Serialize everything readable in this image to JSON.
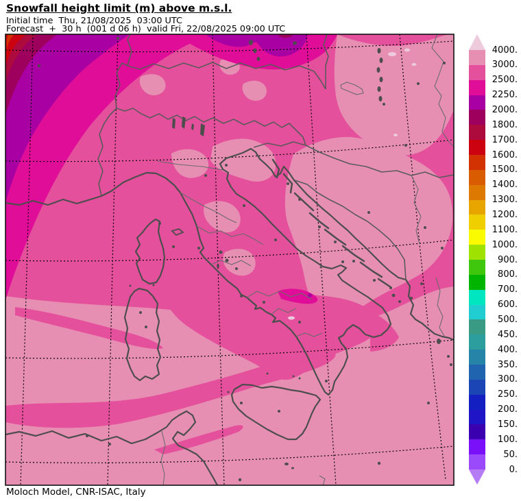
{
  "header": {
    "title": "Snowfall height limit (m) above m.s.l.",
    "initial_time_line": "Initial time  Thu, 21/08/2025  03:00 UTC",
    "forecast_line": "Forecast  +  30 h  (001 d 06 h)  valid Fri, 22/08/2025 09:00 UTC"
  },
  "footer": {
    "credit": "Moloch Model, CNR-ISAC, Italy"
  },
  "colorbar": {
    "labels": [
      "4000.",
      "3000.",
      "2500.",
      "2250.",
      "2000.",
      "1800.",
      "1700.",
      "1600.",
      "1500.",
      "1400.",
      "1300.",
      "1200.",
      "1100.",
      "1000.",
      "900.",
      "800.",
      "700.",
      "600.",
      "500.",
      "450.",
      "400.",
      "350.",
      "300.",
      "250.",
      "200.",
      "150.",
      "100.",
      "50.",
      "0."
    ],
    "segment_colors_top_to_bottom": [
      "#eecadd",
      "#e78fb3",
      "#e4509c",
      "#e00d99",
      "#a800a2",
      "#9d005d",
      "#ad0a3e",
      "#cd0211",
      "#d23102",
      "#d95c00",
      "#dd7800",
      "#e8a500",
      "#f0cf00",
      "#fbfb00",
      "#9fe100",
      "#3fc70e",
      "#00b400",
      "#00e6c0",
      "#20cdd1",
      "#3a9b84",
      "#2d9e9e",
      "#2584a8",
      "#2063ae",
      "#1b44b4",
      "#141fc2",
      "#1f14c6",
      "#3a00b0",
      "#7a10fa",
      "#9a49fb",
      "#b57cf6"
    ],
    "above_max_color": "#eecadd",
    "below_min_color": "#b57cf6",
    "units": "m"
  },
  "map_colors": {
    "range_3000_4000": "#e78fb3",
    "range_2500_3000": "#e4509c",
    "range_2250_2500": "#e00d99",
    "range_2000_2250": "#a800a2",
    "range_1800_2000": "#9d005d",
    "range_1700_1800": "#ad0a3e",
    "range_1600_1700": "#cd0211",
    "range_1500_1600": "#d23102",
    "coastline": "#4d4d4d",
    "gridline": "#000000"
  }
}
